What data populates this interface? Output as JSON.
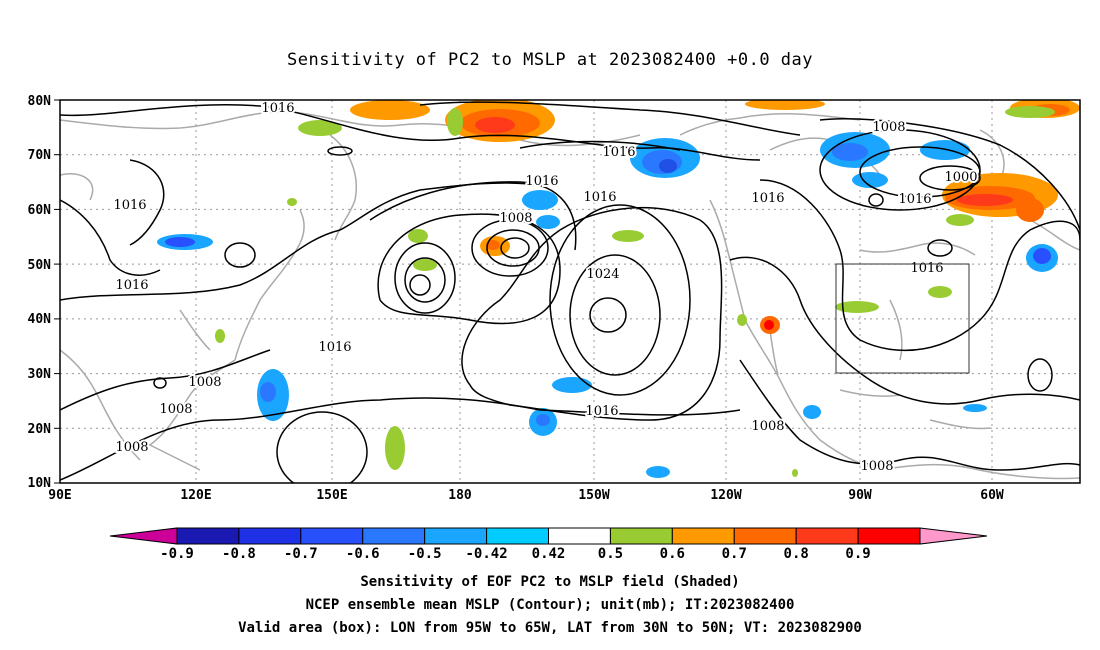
{
  "title": "Sensitivity of PC2 to MSLP at 2023082400 +0.0 day",
  "lat_labels": [
    "80N",
    "70N",
    "60N",
    "50N",
    "40N",
    "30N",
    "20N",
    "10N"
  ],
  "lon_labels": [
    "90E",
    "120E",
    "150E",
    "180",
    "150W",
    "120W",
    "90W",
    "60W"
  ],
  "contour_labels": [
    {
      "text": "1016"
    },
    {
      "text": "1016"
    },
    {
      "text": "1016"
    },
    {
      "text": "1016"
    },
    {
      "text": "1016"
    },
    {
      "text": "1008"
    },
    {
      "text": "1016"
    },
    {
      "text": "1016"
    },
    {
      "text": "1016"
    },
    {
      "text": "1016"
    },
    {
      "text": "1024"
    },
    {
      "text": "1008"
    },
    {
      "text": "1008"
    },
    {
      "text": "1008"
    },
    {
      "text": "1016"
    },
    {
      "text": "1008"
    },
    {
      "text": "1008"
    },
    {
      "text": "1000"
    },
    {
      "text": "1008"
    },
    {
      "text": "1016"
    }
  ],
  "colorbar": {
    "labels": [
      "-0.9",
      "-0.8",
      "-0.7",
      "-0.6",
      "-0.5",
      "-0.42",
      "0.42",
      "0.5",
      "0.6",
      "0.7",
      "0.8",
      "0.9"
    ],
    "colors": [
      "#1a1ab3",
      "#2030e6",
      "#2850ff",
      "#2a78ff",
      "#1aa6ff",
      "#00ccff",
      "#ffffff",
      "#99cc33",
      "#ff9900",
      "#ff6a00",
      "#ff3a1a",
      "#ff0000"
    ],
    "low_end": "#cc0099",
    "high_end": "#ff99cc"
  },
  "captions": [
    "Sensitivity of EOF PC2 to MSLP field (Shaded)",
    "NCEP ensemble mean MSLP (Contour); unit(mb); IT:2023082400",
    "Valid area (box): LON from 95W to 65W, LAT from 30N to 50N; VT: 2023082900"
  ]
}
